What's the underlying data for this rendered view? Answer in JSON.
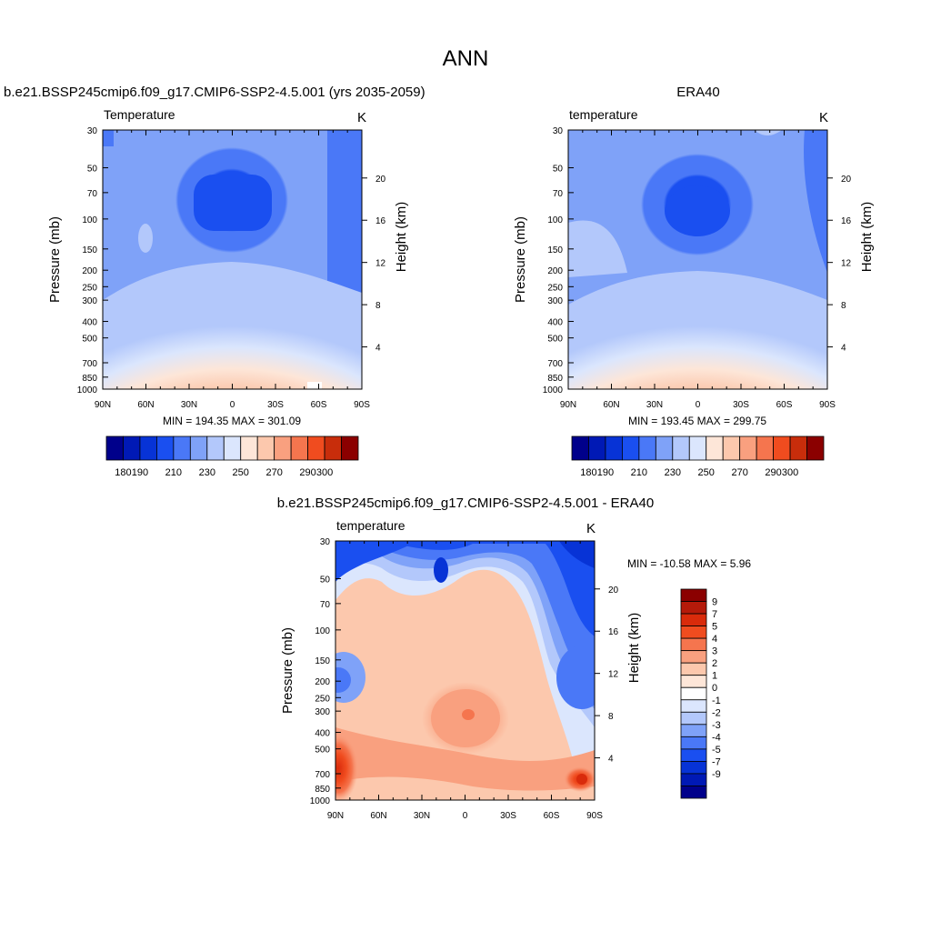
{
  "page_title": "ANN",
  "chart_data": [
    {
      "type": "heatmap",
      "title": "b.e21.BSSP245cmip6.f09_g17.CMIP6-SSP2-4.5.001 (yrs 2035-2059)",
      "field_label": "Temperature",
      "units": "K",
      "xlabel": "",
      "ylabel": "Pressure (mb)",
      "ylabel_right": "Height (km)",
      "x_ticks": [
        "90N",
        "60N",
        "30N",
        "0",
        "30S",
        "60S",
        "90S"
      ],
      "y_ticks": [
        "30",
        "50",
        "70",
        "100",
        "150",
        "200",
        "250",
        "300",
        "400",
        "500",
        "700",
        "850",
        "1000"
      ],
      "y_right_ticks": [
        "20",
        "16",
        "12",
        "8",
        "4"
      ],
      "ylim": [
        1000,
        30
      ],
      "y_scale": "log",
      "stats_label": "MIN = 194.35  MAX = 301.09",
      "min": 194.35,
      "max": 301.09,
      "colorbar": {
        "orientation": "horizontal",
        "levels": [
          180,
          190,
          200,
          210,
          220,
          230,
          240,
          250,
          260,
          270,
          280,
          290,
          300
        ],
        "tick_labels": [
          "180",
          "190",
          "210",
          "230",
          "250",
          "270",
          "290",
          "300"
        ],
        "colors": [
          "#00008b",
          "#0019b5",
          "#0733d6",
          "#1a4ff0",
          "#4a78f7",
          "#7fa2f8",
          "#b3c8fb",
          "#dbe6fd",
          "#fde6d8",
          "#fcc8ad",
          "#f9a07f",
          "#f5754e",
          "#f04c1f",
          "#c82d0b",
          "#8b0000"
        ]
      }
    },
    {
      "type": "heatmap",
      "title": "ERA40",
      "field_label": "temperature",
      "units": "K",
      "xlabel": "",
      "ylabel": "Pressure (mb)",
      "ylabel_right": "Height (km)",
      "x_ticks": [
        "90N",
        "60N",
        "30N",
        "0",
        "30S",
        "60S",
        "90S"
      ],
      "y_ticks": [
        "30",
        "50",
        "70",
        "100",
        "150",
        "200",
        "250",
        "300",
        "400",
        "500",
        "700",
        "850",
        "1000"
      ],
      "y_right_ticks": [
        "20",
        "16",
        "12",
        "8",
        "4"
      ],
      "ylim": [
        1000,
        30
      ],
      "y_scale": "log",
      "stats_label": "MIN = 193.45  MAX = 299.75",
      "min": 193.45,
      "max": 299.75,
      "colorbar": {
        "orientation": "horizontal",
        "levels": [
          180,
          190,
          200,
          210,
          220,
          230,
          240,
          250,
          260,
          270,
          280,
          290,
          300
        ],
        "tick_labels": [
          "180",
          "190",
          "210",
          "230",
          "250",
          "270",
          "290",
          "300"
        ],
        "colors": [
          "#00008b",
          "#0019b5",
          "#0733d6",
          "#1a4ff0",
          "#4a78f7",
          "#7fa2f8",
          "#b3c8fb",
          "#dbe6fd",
          "#fde6d8",
          "#fcc8ad",
          "#f9a07f",
          "#f5754e",
          "#f04c1f",
          "#c82d0b",
          "#8b0000"
        ]
      }
    },
    {
      "type": "heatmap",
      "title": "b.e21.BSSP245cmip6.f09_g17.CMIP6-SSP2-4.5.001 - ERA40",
      "field_label": "temperature",
      "units": "K",
      "xlabel": "",
      "ylabel": "Pressure (mb)",
      "ylabel_right": "Height (km)",
      "x_ticks": [
        "90N",
        "60N",
        "30N",
        "0",
        "30S",
        "60S",
        "90S"
      ],
      "y_ticks": [
        "30",
        "50",
        "70",
        "100",
        "150",
        "200",
        "250",
        "300",
        "400",
        "500",
        "700",
        "850",
        "1000"
      ],
      "y_right_ticks": [
        "20",
        "16",
        "12",
        "8",
        "4"
      ],
      "ylim": [
        1000,
        30
      ],
      "y_scale": "log",
      "stats_label": "MIN = -10.58  MAX =   5.96",
      "min": -10.58,
      "max": 5.96,
      "colorbar": {
        "orientation": "vertical",
        "levels": [
          9,
          7,
          5,
          4,
          3,
          2,
          1,
          0,
          -1,
          -2,
          -3,
          -4,
          -5,
          -7,
          -9
        ],
        "tick_labels": [
          "9",
          "7",
          "5",
          "4",
          "3",
          "2",
          "1",
          "0",
          "-1",
          "-2",
          "-3",
          "-4",
          "-5",
          "-7",
          "-9"
        ],
        "colors": [
          "#8b0000",
          "#b51a0a",
          "#d92b0b",
          "#f04c1f",
          "#f5754e",
          "#f9a07f",
          "#fcc8ad",
          "#fde6d8",
          "#ffffff",
          "#dbe6fd",
          "#b3c8fb",
          "#7fa2f8",
          "#4a78f7",
          "#1a4ff0",
          "#0733d6",
          "#0019b5",
          "#00008b"
        ]
      }
    }
  ]
}
